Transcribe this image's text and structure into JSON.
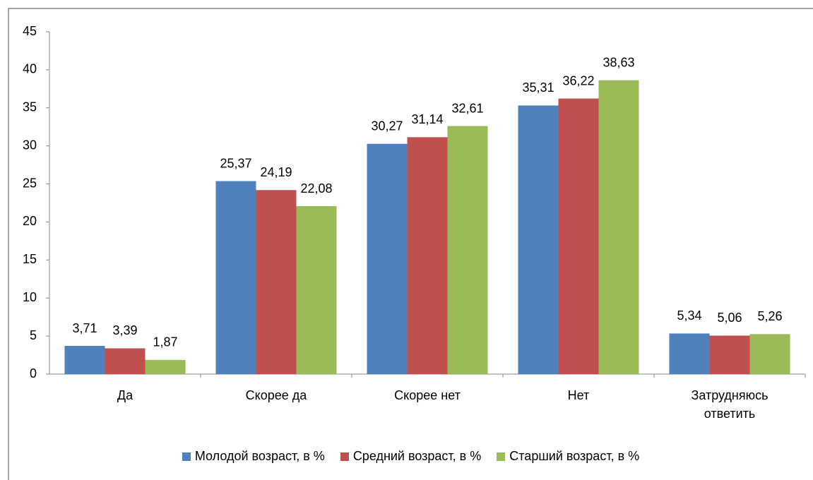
{
  "chart_data": {
    "type": "bar",
    "categories": [
      "Да",
      "Скорее да",
      "Скорее нет",
      "Нет",
      "Затрудняюсь ответить"
    ],
    "series": [
      {
        "name": "Молодой возраст, в %",
        "color": "#4f81bd",
        "values": [
          3.71,
          25.37,
          30.27,
          35.31,
          5.34
        ],
        "value_labels": [
          "3,71",
          "25,37",
          "30,27",
          "35,31",
          "5,34"
        ]
      },
      {
        "name": "Средний возраст, в %",
        "color": "#c0504d",
        "values": [
          3.39,
          24.19,
          31.14,
          36.22,
          5.06
        ],
        "value_labels": [
          "3,39",
          "24,19",
          "31,14",
          "36,22",
          "5,06"
        ]
      },
      {
        "name": "Старший возраст, в %",
        "color": "#9bbb59",
        "values": [
          1.87,
          22.08,
          32.61,
          38.63,
          5.26
        ],
        "value_labels": [
          "1,87",
          "22,08",
          "32,61",
          "38,63",
          "5,26"
        ]
      }
    ],
    "ylim": [
      0,
      45
    ],
    "yticks": [
      0,
      5,
      10,
      15,
      20,
      25,
      30,
      35,
      40,
      45
    ],
    "grid": false,
    "legend": "bottom"
  }
}
